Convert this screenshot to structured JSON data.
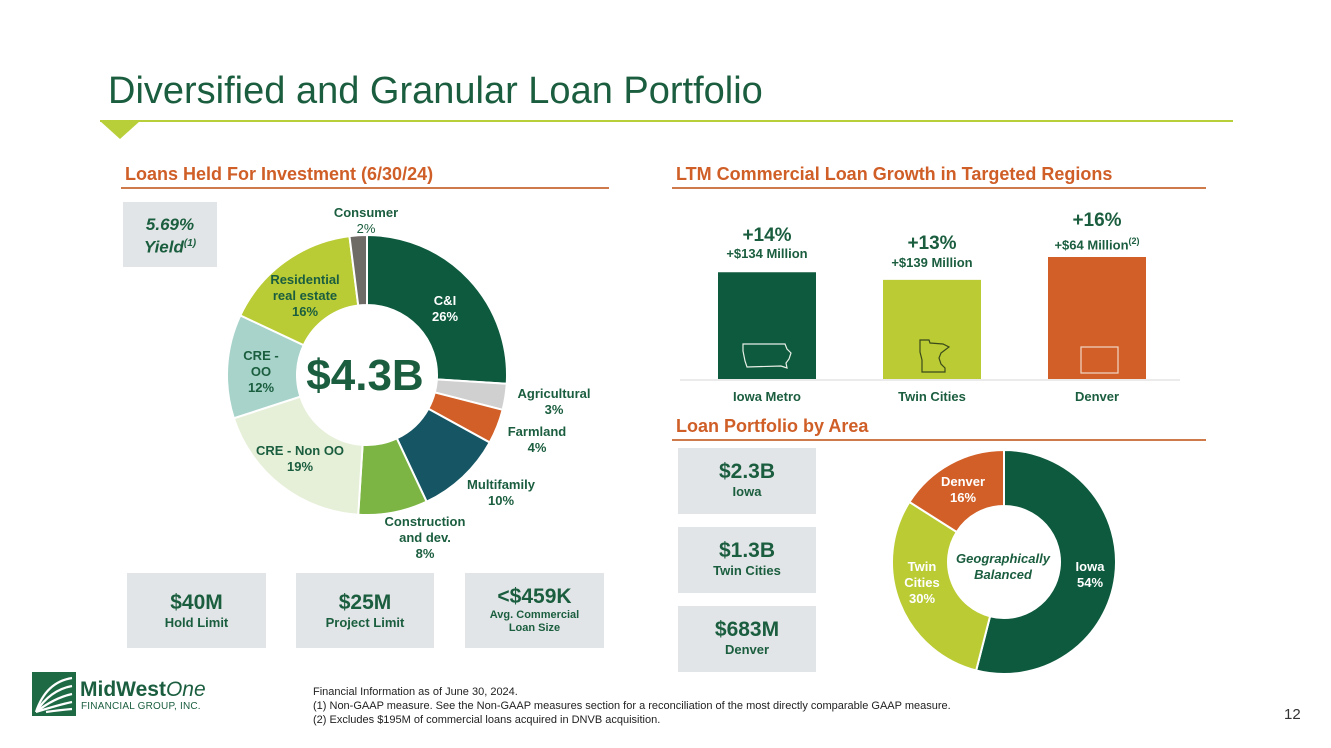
{
  "page": {
    "title": "Diversified and Granular Loan Portfolio",
    "page_number": "12"
  },
  "colors": {
    "dark_green": "#1b5e3f",
    "lime": "#b9cb35",
    "orange": "#cf5e27",
    "gray_box": "#e2e5e7"
  },
  "loans": {
    "section_title": "Loans Held For Investment (6/30/24)",
    "yield_value": "5.69%",
    "yield_label": "Yield",
    "yield_sup": "(1)",
    "center_total": "$4.3B",
    "slice_labels": [
      {
        "line1": "C&I",
        "line2": "26%"
      },
      {
        "line1": "Agricultural",
        "line2": "3%"
      },
      {
        "line1": "Farmland",
        "line2": "4%"
      },
      {
        "line1": "Multifamily",
        "line2": "10%"
      },
      {
        "line1": "Construction",
        "line2": "and dev.",
        "line3": "8%"
      },
      {
        "line1": "CRE - Non OO",
        "line2": "19%"
      },
      {
        "line1": "CRE -",
        "line2": "OO",
        "line3": "12%"
      },
      {
        "line1": "Residential",
        "line2": "real estate",
        "line3": "16%"
      },
      {
        "line1": "Consumer",
        "line2": "2%"
      }
    ],
    "stats": [
      {
        "value": "$40M",
        "label": "Hold Limit"
      },
      {
        "value": "$25M",
        "label": "Project Limit"
      },
      {
        "value": "<$459K",
        "label": "Avg. Commercial",
        "label2": "Loan Size"
      }
    ]
  },
  "growth": {
    "section_title": "LTM Commercial Loan Growth in Targeted Regions",
    "bars": [
      {
        "name": "Iowa Metro",
        "pct": "+14%",
        "amount": "+$134 Million",
        "sup": "",
        "icon": "iowa-map-icon"
      },
      {
        "name": "Twin Cities",
        "pct": "+13%",
        "amount": "+$139 Million",
        "sup": "",
        "icon": "minnesota-map-icon"
      },
      {
        "name": "Denver",
        "pct": "+16%",
        "amount": "+$64 Million",
        "sup": "(2)",
        "icon": "colorado-map-icon"
      }
    ]
  },
  "area": {
    "section_title": "Loan Portfolio by Area",
    "boxes": [
      {
        "value": "$2.3B",
        "label": "Iowa"
      },
      {
        "value": "$1.3B",
        "label": "Twin Cities"
      },
      {
        "value": "$683M",
        "label": "Denver"
      }
    ],
    "center_line1": "Geographically",
    "center_line2": "Balanced",
    "slice_labels": [
      {
        "line1": "Iowa",
        "line2": "54%"
      },
      {
        "line1": "Twin",
        "line2": "Cities",
        "line3": "30%"
      },
      {
        "line1": "Denver",
        "line2": "16%"
      }
    ]
  },
  "logo": {
    "name_main": "MidWest",
    "name_italic": "One",
    "subtitle": "FINANCIAL GROUP, INC."
  },
  "footnotes": {
    "line0": "Financial Information as of June 30, 2024.",
    "line1": "(1)   Non-GAAP measure. See the Non-GAAP measures section for a reconciliation of the most directly comparable GAAP measure.",
    "line2": "(2)   Excludes $195M of commercial loans acquired in DNVB acquisition."
  },
  "chart_data": [
    {
      "type": "pie",
      "title": "Loans Held For Investment (6/30/24)",
      "center_label": "$4.3B",
      "categories": [
        "C&I",
        "Agricultural",
        "Farmland",
        "Multifamily",
        "Construction and dev.",
        "CRE - Non OO",
        "CRE - OO",
        "Residential real estate",
        "Consumer"
      ],
      "values": [
        26,
        3,
        4,
        10,
        8,
        19,
        12,
        16,
        2
      ],
      "colors": [
        "#0d5a3e",
        "#cfd0cf",
        "#d15f27",
        "#155564",
        "#7cb543",
        "#e6efd8",
        "#a7d3ca",
        "#b9cb35",
        "#6e6a66"
      ]
    },
    {
      "type": "bar",
      "title": "LTM Commercial Loan Growth in Targeted Regions",
      "categories": [
        "Iowa Metro",
        "Twin Cities",
        "Denver"
      ],
      "values": [
        14,
        13,
        16
      ],
      "amounts_millions": [
        134,
        139,
        64
      ],
      "colors": [
        "#0d5a3e",
        "#bbcb34",
        "#d15f27"
      ],
      "ylim": [
        0,
        16
      ]
    },
    {
      "type": "pie",
      "title": "Loan Portfolio by Area",
      "center_label": "Geographically Balanced",
      "categories": [
        "Iowa",
        "Twin Cities",
        "Denver"
      ],
      "values": [
        54,
        30,
        16
      ],
      "colors": [
        "#0d5a3e",
        "#bbcb34",
        "#d15f27"
      ]
    }
  ]
}
